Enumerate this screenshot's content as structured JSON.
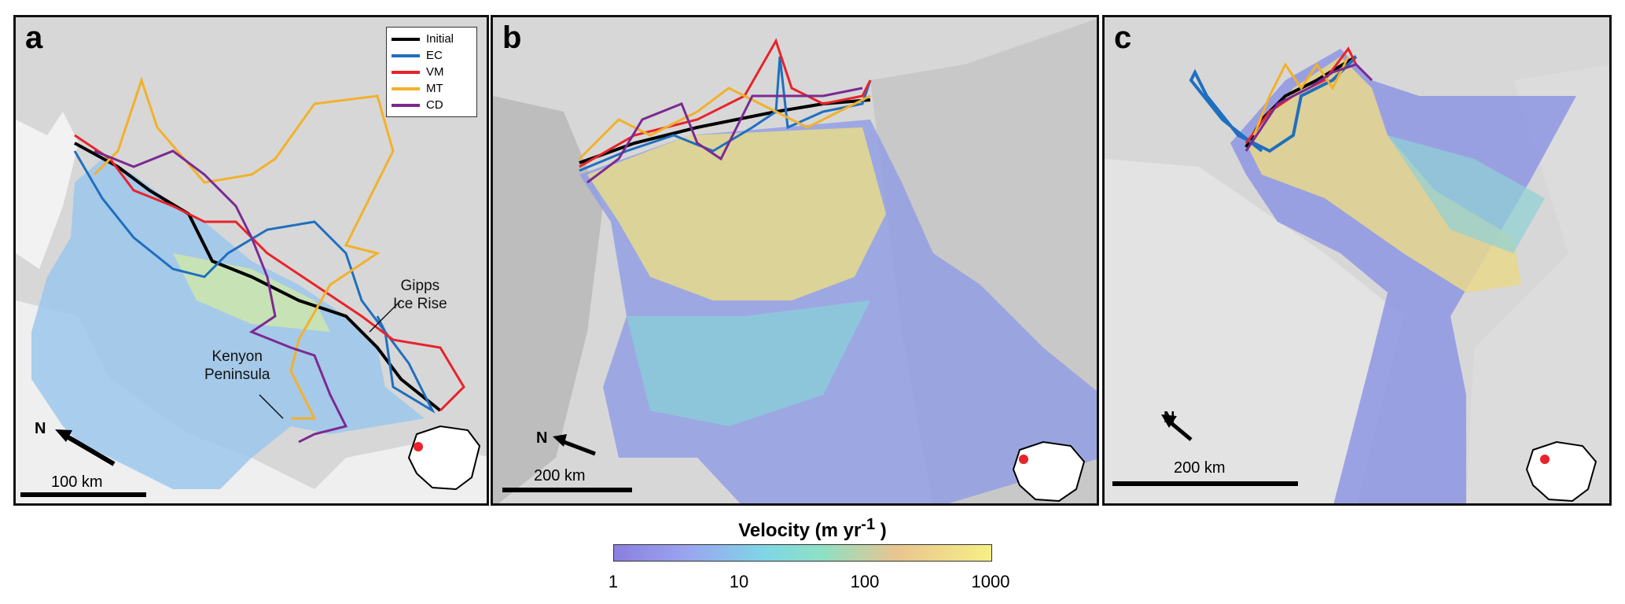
{
  "panels": [
    {
      "id": "a",
      "letter": "a",
      "scale_label": "100 km",
      "north_label": "N",
      "annotations": {
        "gipps": "Gipps\nIce Rise",
        "kenyon": "Kenyon\nPeninsula"
      }
    },
    {
      "id": "b",
      "letter": "b",
      "scale_label": "200 km",
      "north_label": "N"
    },
    {
      "id": "c",
      "letter": "c",
      "scale_label": "200 km",
      "north_label": "N"
    }
  ],
  "legend": {
    "items": [
      {
        "label": "Initial",
        "color": "#000000"
      },
      {
        "label": "EC",
        "color": "#1f6fbf"
      },
      {
        "label": "VM",
        "color": "#e8232a"
      },
      {
        "label": "MT",
        "color": "#f2b12a"
      },
      {
        "label": "CD",
        "color": "#7b2a92"
      }
    ]
  },
  "colorbar": {
    "title": "Velocity (m yr",
    "title_exp": "-1",
    "title_close": ")",
    "ticks": [
      "1",
      "10",
      "100",
      "1000"
    ],
    "scale": "log"
  },
  "colors": {
    "low_velocity": "#8b7fe0",
    "mid_velocity": "#7fd6e6",
    "high_velocity": "#f6ef86",
    "background": "#d7d7d7"
  }
}
